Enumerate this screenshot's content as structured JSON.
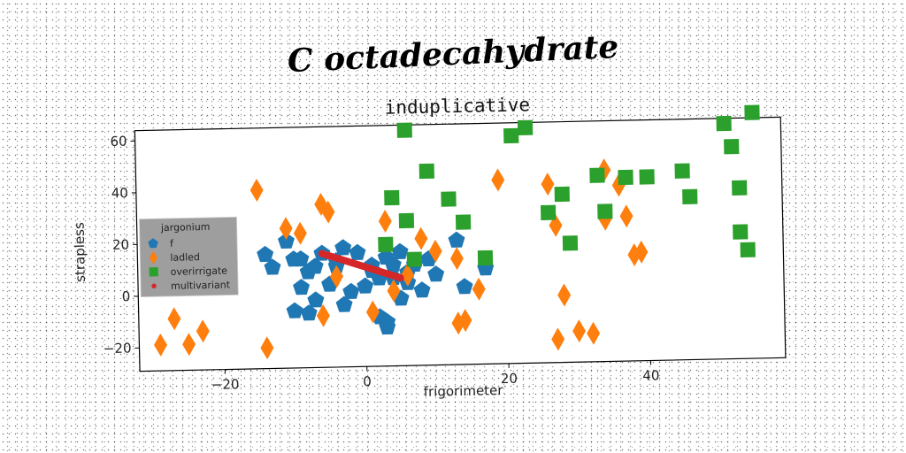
{
  "suptitle": "C octadecahydrate",
  "chart_data": {
    "type": "scatter",
    "title": "induplicative",
    "xlabel": "frigorimeter",
    "ylabel": "strapless",
    "xlim": [
      -32,
      59
    ],
    "ylim": [
      -29,
      64
    ],
    "xticks": [
      -20,
      0,
      20,
      40
    ],
    "yticks": [
      -20,
      0,
      20,
      40,
      60
    ],
    "grid": false,
    "legend": {
      "title": "jargonium",
      "placement": "center-left"
    },
    "series": [
      {
        "name": "f",
        "marker": "pentagon",
        "color": "#1f77b4",
        "x": [
          -14,
          -13,
          -11,
          -10,
          -9,
          -9,
          -8,
          -7,
          -7,
          -6,
          -5,
          -4,
          -4,
          -3,
          -2,
          -1,
          0,
          1,
          2,
          2,
          3,
          3,
          4,
          4,
          5,
          5,
          6,
          7,
          8,
          9,
          10,
          13,
          14,
          17,
          -10,
          -8,
          -3,
          1,
          3,
          6
        ],
        "y": [
          15,
          10,
          20,
          13,
          2,
          13,
          8,
          10,
          -3,
          15,
          3,
          12,
          10,
          -5,
          0,
          15,
          2,
          10,
          -10,
          5,
          13,
          -12,
          10,
          5,
          -3,
          15,
          7,
          10,
          0,
          12,
          6,
          19,
          1,
          8,
          -7,
          -8,
          17,
          8,
          -14,
          3
        ]
      },
      {
        "name": "ladled",
        "marker": "diamond",
        "color": "#ff7f0e",
        "x": [
          -29,
          -27,
          -25,
          -23,
          -15,
          -14,
          -11,
          -9,
          -6,
          -6,
          -5,
          -4,
          1,
          3,
          4,
          6,
          8,
          10,
          13,
          13,
          14,
          16,
          19,
          26,
          27,
          27,
          28,
          30,
          32,
          34,
          34,
          36,
          37,
          38,
          39
        ],
        "y": [
          -19,
          -9,
          -19,
          -14,
          40,
          -21,
          25,
          23,
          -9,
          34,
          31,
          6,
          -8,
          27,
          0,
          6,
          20,
          15,
          -13,
          12,
          -12,
          0,
          42,
          40,
          -20,
          24,
          -3,
          -17,
          -18,
          45,
          26,
          39,
          27,
          12,
          13
        ]
      },
      {
        "name": "overirrigate",
        "marker": "square",
        "color": "#2ca02c",
        "x": [
          3,
          4,
          6,
          6,
          7,
          9,
          12,
          14,
          17,
          21,
          23,
          26,
          28,
          29,
          33,
          34,
          37,
          40,
          45,
          46,
          51,
          52,
          53,
          53,
          54,
          55
        ],
        "y": [
          18,
          36,
          27,
          62,
          12,
          46,
          35,
          26,
          12,
          59,
          62,
          29,
          36,
          17,
          43,
          29,
          42,
          42,
          44,
          34,
          62,
          53,
          37,
          20,
          13,
          66
        ]
      },
      {
        "name": "multivariant",
        "marker": "circle",
        "color": "#d62728",
        "type": "line",
        "x": [
          -6,
          5
        ],
        "y": [
          15,
          5
        ]
      }
    ]
  }
}
